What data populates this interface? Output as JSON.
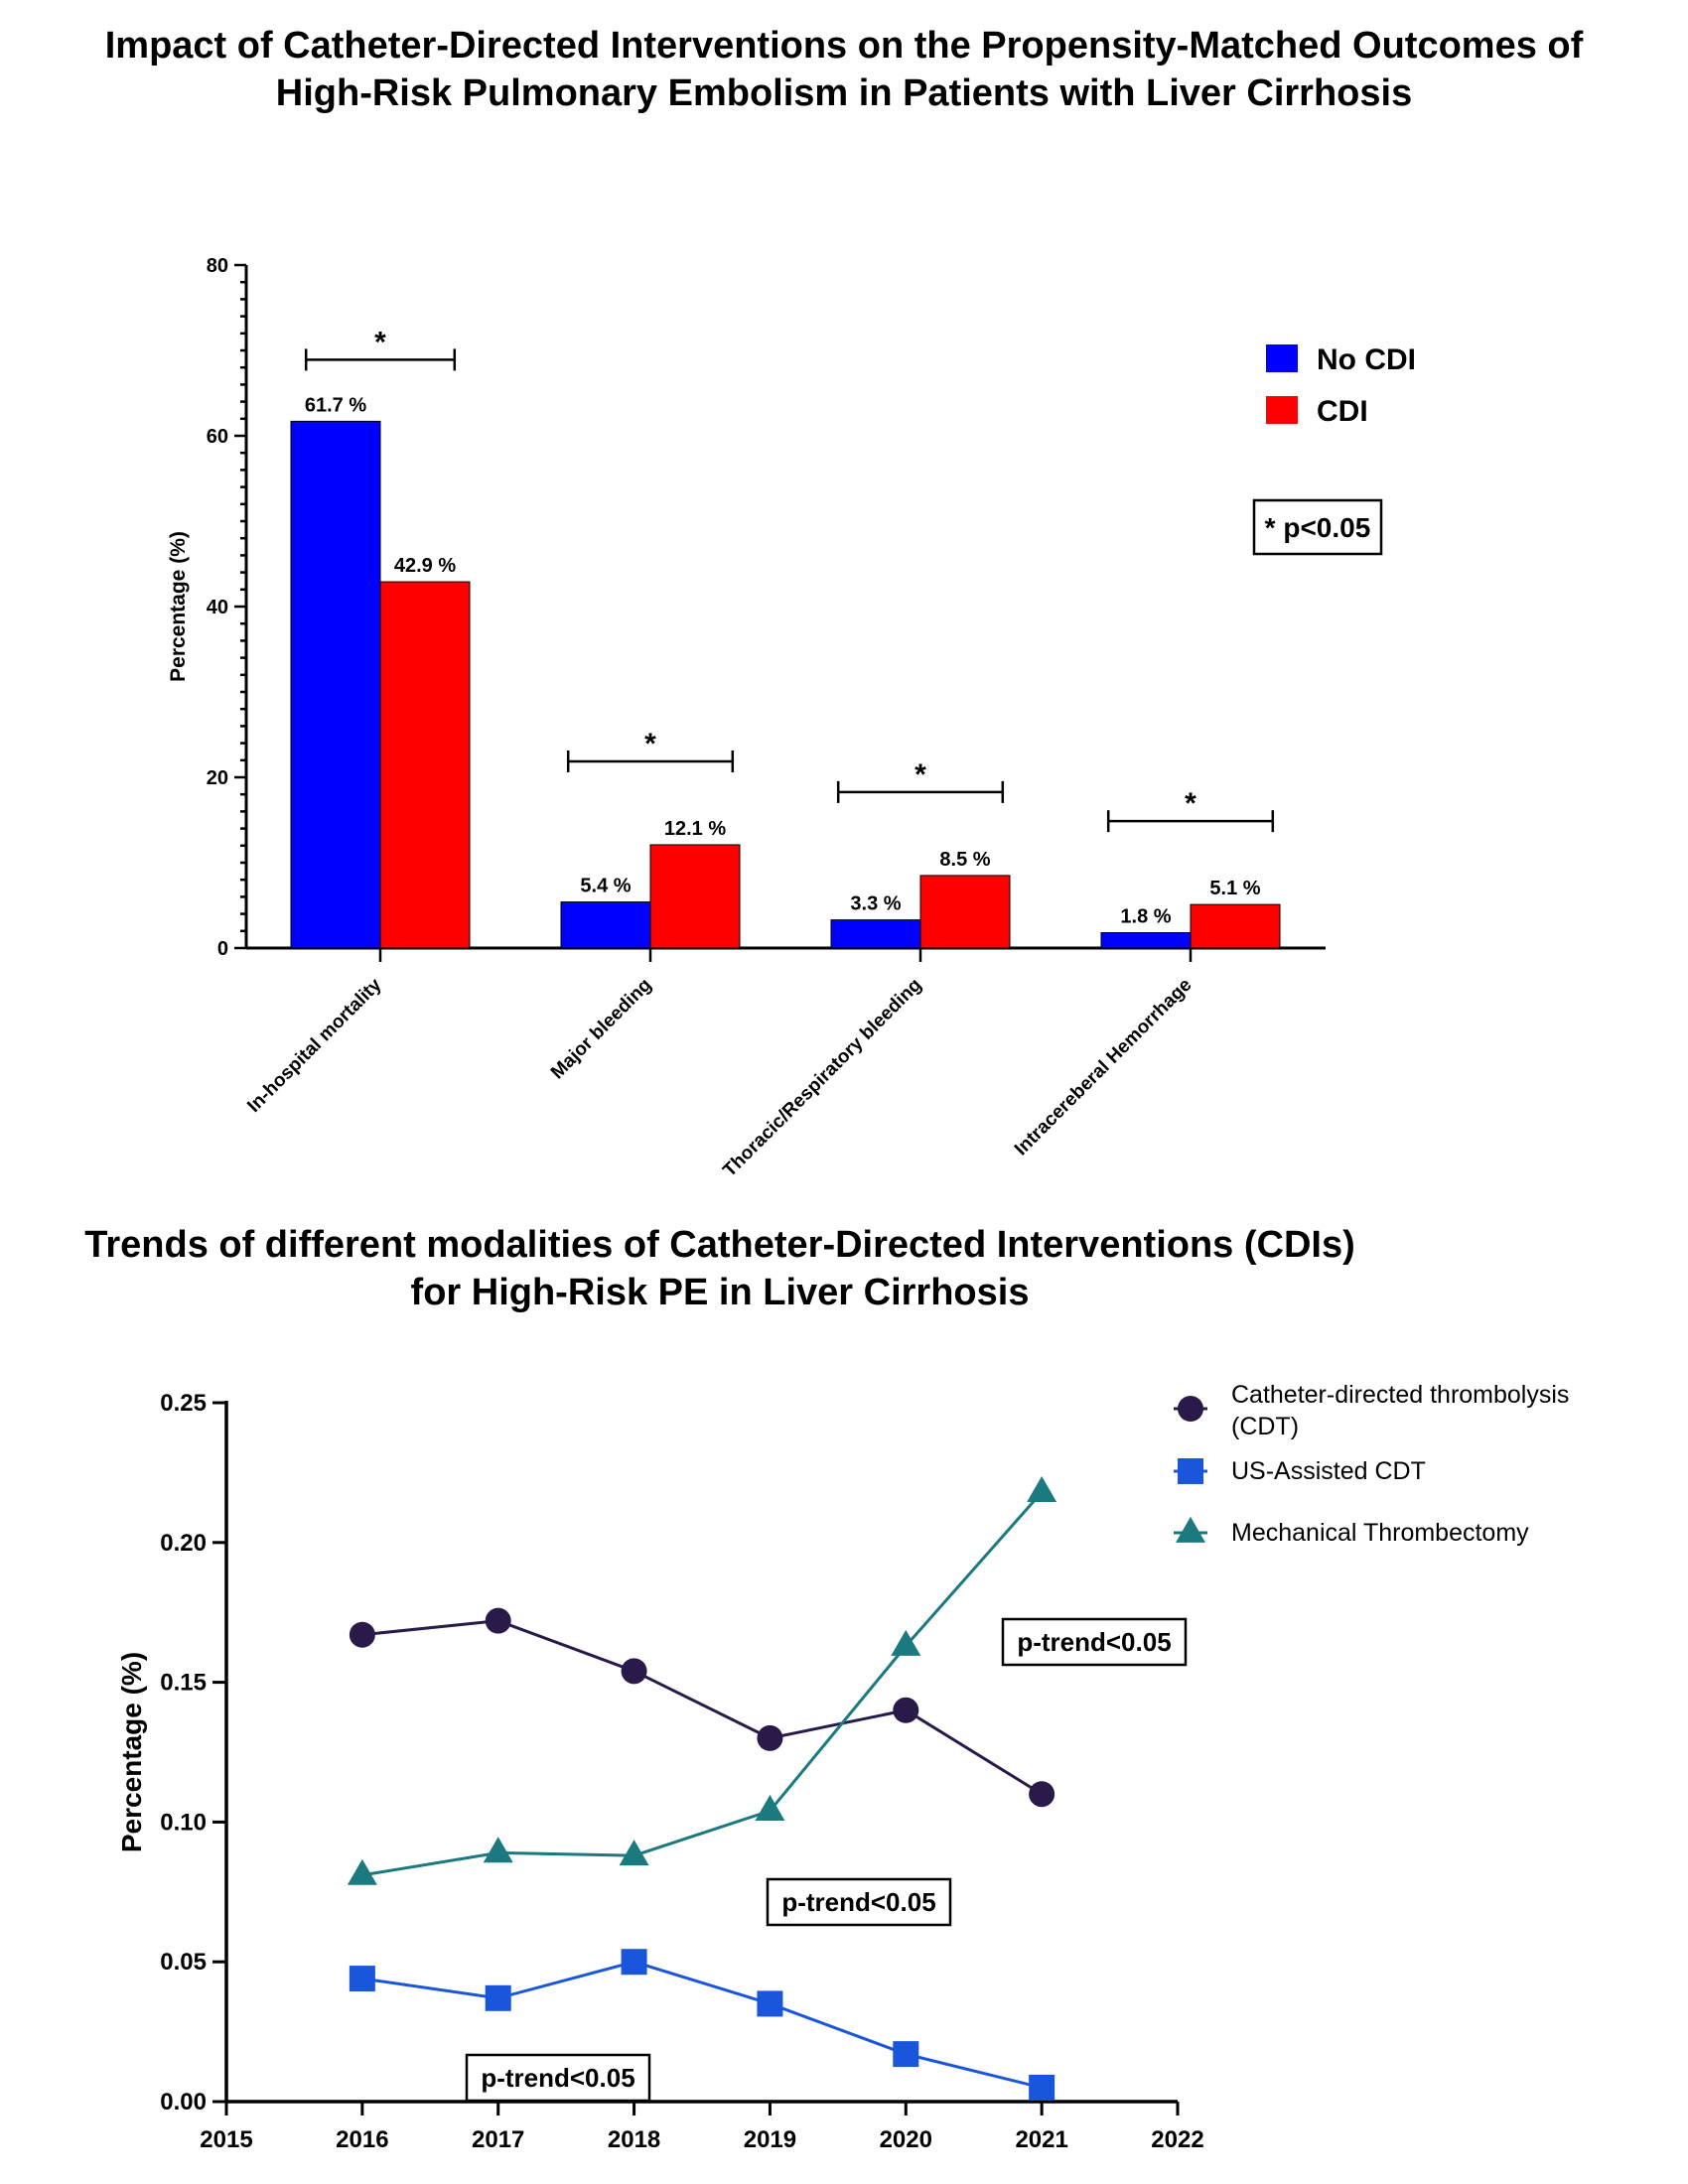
{
  "chart_data": [
    {
      "type": "bar",
      "title": [
        "Impact of Catheter-Directed Interventions on the Propensity-Matched Outcomes of",
        "High-Risk Pulmonary Embolism in Patients with Liver Cirrhosis"
      ],
      "ylabel": "Percentage (%)",
      "ylim": [
        0,
        80
      ],
      "yticks": [
        "0",
        "20",
        "40",
        "60",
        "80"
      ],
      "categories": [
        "In-hospital mortality",
        "Major bleeding",
        "Thoracic/Respiratory bleeding",
        "Intracereberal Hemorrhage"
      ],
      "series": [
        {
          "name": "No CDI",
          "color": "#0000ff",
          "values": [
            61.7,
            5.4,
            3.3,
            1.8
          ],
          "labels": [
            "61.7 %",
            "5.4 %",
            "3.3 %",
            "1.8 %"
          ]
        },
        {
          "name": "CDI",
          "color": "#ff0000",
          "values": [
            42.9,
            12.1,
            8.5,
            5.1
          ],
          "labels": [
            "42.9 %",
            "12.1 %",
            "8.5 %",
            "5.1 %"
          ]
        }
      ],
      "significance_marker": "*",
      "annotation": "* p<0.05",
      "legend_position": "top-right"
    },
    {
      "type": "line",
      "title": [
        "Trends of different modalities of Catheter-Directed Interventions (CDIs)",
        "for High-Risk PE in Liver Cirrhosis"
      ],
      "ylabel": "Percentage (%)",
      "xlim": [
        2015,
        2022
      ],
      "ylim": [
        0,
        0.25
      ],
      "xticks": [
        "2015",
        "2016",
        "2017",
        "2018",
        "2019",
        "2020",
        "2021",
        "2022"
      ],
      "yticks": [
        "0.00",
        "0.05",
        "0.10",
        "0.15",
        "0.20",
        "0.25"
      ],
      "x": [
        2016,
        2017,
        2018,
        2019,
        2020,
        2021
      ],
      "series": [
        {
          "name": [
            "Catheter-directed thrombolysis",
            "(CDT)"
          ],
          "marker": "circle",
          "color": "#2a1a4a",
          "values": [
            0.167,
            0.172,
            0.154,
            0.13,
            0.14,
            0.11
          ]
        },
        {
          "name": [
            "US-Assisted CDT"
          ],
          "marker": "square",
          "color": "#1a56db",
          "values": [
            0.044,
            0.037,
            0.05,
            0.035,
            0.017,
            0.005
          ]
        },
        {
          "name": [
            "Mechanical Thrombectomy"
          ],
          "marker": "triangle",
          "color": "#1a7a80",
          "values": [
            0.081,
            0.089,
            0.088,
            0.104,
            0.163,
            0.218
          ]
        }
      ],
      "annotations": [
        "p-trend<0.05",
        "p-trend<0.05",
        "p-trend<0.05"
      ],
      "legend_position": "top-right"
    }
  ]
}
